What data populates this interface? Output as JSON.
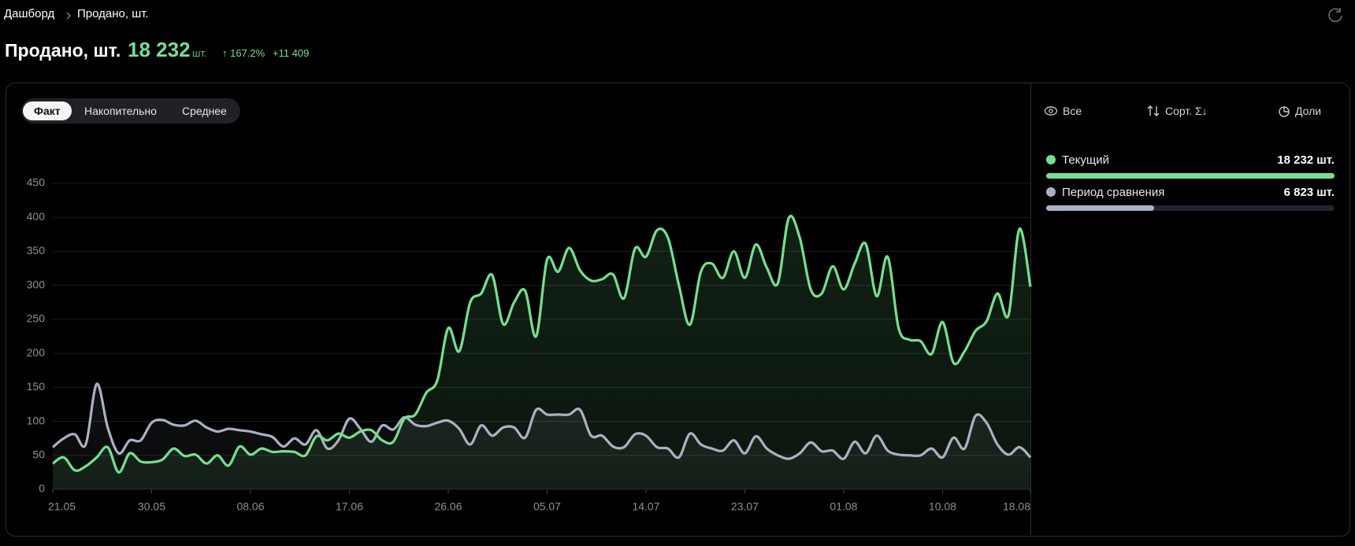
{
  "breadcrumb": [
    "Дашборд",
    "Продано, шт."
  ],
  "header": {
    "title": "Продано, шт.",
    "total": "18 232",
    "unit": "шт.",
    "change": "↑ 167.2%",
    "diff": "+11 409"
  },
  "tabs": [
    "Факт",
    "Накопительно",
    "Среднее"
  ],
  "tools": [
    "Все",
    "Сорт. Σ↓",
    "Доли"
  ],
  "legend": [
    {
      "name": "Текущий",
      "total": 18232,
      "total_label": "18 232 шт.",
      "color": "#74e08f"
    },
    {
      "name": "Период сравнения",
      "total": 6823,
      "total_label": "6 823 шт.",
      "color": "#a9b1c2"
    }
  ],
  "chart_data": {
    "type": "line",
    "categories": [
      "21.05",
      null,
      null,
      null,
      null,
      null,
      null,
      null,
      null,
      "30.05",
      null,
      null,
      null,
      null,
      null,
      null,
      null,
      null,
      "08.06",
      null,
      null,
      null,
      null,
      null,
      null,
      null,
      null,
      "17.06",
      null,
      null,
      null,
      null,
      null,
      null,
      null,
      null,
      "26.06",
      null,
      null,
      null,
      null,
      null,
      null,
      null,
      null,
      "05.07",
      null,
      null,
      null,
      null,
      null,
      null,
      null,
      null,
      "14.07",
      null,
      null,
      null,
      null,
      null,
      null,
      null,
      null,
      "23.07",
      null,
      null,
      null,
      null,
      null,
      null,
      null,
      null,
      "01.08",
      null,
      null,
      null,
      null,
      null,
      null,
      null,
      null,
      "10.08",
      null,
      null,
      null,
      null,
      null,
      null,
      null,
      "18.08"
    ],
    "series": [
      {
        "name": "Текущий",
        "color": "#74e08f",
        "values": [
          38,
          47,
          28,
          34,
          47,
          62,
          25,
          53,
          41,
          40,
          44,
          60,
          49,
          51,
          38,
          50,
          35,
          63,
          51,
          60,
          55,
          56,
          55,
          50,
          78,
          72,
          82,
          76,
          85,
          87,
          72,
          70,
          104,
          110,
          142,
          160,
          237,
          203,
          275,
          288,
          315,
          243,
          275,
          292,
          225,
          338,
          320,
          355,
          322,
          307,
          309,
          316,
          281,
          354,
          342,
          381,
          370,
          300,
          242,
          320,
          332,
          311,
          350,
          311,
          360,
          326,
          303,
          399,
          370,
          294,
          288,
          328,
          294,
          332,
          361,
          284,
          342,
          237,
          220,
          218,
          199,
          246,
          186,
          203,
          233,
          247,
          288,
          256,
          383,
          298
        ]
      },
      {
        "name": "Период сравнения",
        "color": "#a9b1c2",
        "values": [
          62,
          75,
          81,
          66,
          155,
          91,
          53,
          72,
          72,
          98,
          102,
          95,
          94,
          101,
          91,
          85,
          89,
          87,
          85,
          81,
          77,
          63,
          75,
          66,
          87,
          60,
          72,
          104,
          89,
          70,
          94,
          88,
          106,
          95,
          93,
          98,
          101,
          89,
          66,
          94,
          79,
          91,
          91,
          76,
          117,
          110,
          110,
          110,
          117,
          79,
          79,
          63,
          62,
          81,
          79,
          62,
          60,
          47,
          82,
          66,
          60,
          57,
          72,
          53,
          78,
          60,
          50,
          45,
          53,
          69,
          56,
          57,
          45,
          70,
          53,
          79,
          57,
          51,
          50,
          50,
          60,
          47,
          76,
          60,
          108,
          98,
          66,
          51,
          62,
          47
        ]
      }
    ],
    "ylim": [
      0,
      450
    ],
    "yticks": [
      0,
      50,
      100,
      150,
      200,
      250,
      300,
      350,
      400,
      450
    ],
    "grid": true
  }
}
